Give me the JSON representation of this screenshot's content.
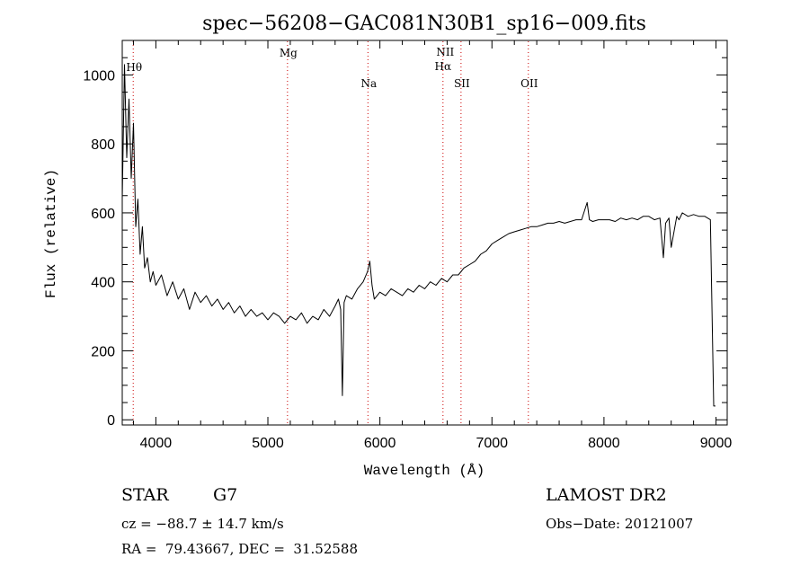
{
  "chart_data": {
    "type": "line",
    "title": "spec−56208−GAC081N30B1_sp16−009.fits",
    "xlabel": "Wavelength (Å)",
    "ylabel": "Flux (relative)",
    "xlim": [
      3700,
      9100
    ],
    "ylim": [
      -15,
      1100
    ],
    "xticks": [
      4000,
      5000,
      6000,
      7000,
      8000,
      9000
    ],
    "yticks": [
      0,
      200,
      400,
      600,
      800,
      1000
    ],
    "x_tick_labels": [
      "4000",
      "5000",
      "6000",
      "7000",
      "8000",
      "9000"
    ],
    "y_tick_labels": [
      "0",
      "200",
      "400",
      "600",
      "800",
      "1000"
    ],
    "grid": false,
    "line_color": "#000000",
    "marker_color": "#cc0000",
    "spectral_lines": [
      {
        "label": "Hθ",
        "wavelength": 3798
      },
      {
        "label": "Mg",
        "wavelength": 5175
      },
      {
        "label": "Na",
        "wavelength": 5893
      },
      {
        "label": "NII",
        "wavelength": 6583
      },
      {
        "label": "Hα",
        "wavelength": 6563
      },
      {
        "label": "SII",
        "wavelength": 6724
      },
      {
        "label": "OII",
        "wavelength": 7325
      }
    ],
    "x": [
      3700,
      3720,
      3740,
      3760,
      3780,
      3800,
      3820,
      3840,
      3860,
      3880,
      3900,
      3925,
      3950,
      3975,
      4000,
      4050,
      4100,
      4150,
      4200,
      4250,
      4300,
      4350,
      4400,
      4450,
      4500,
      4550,
      4600,
      4650,
      4700,
      4750,
      4800,
      4850,
      4900,
      4950,
      5000,
      5050,
      5100,
      5150,
      5200,
      5250,
      5300,
      5350,
      5400,
      5450,
      5500,
      5550,
      5600,
      5630,
      5650,
      5665,
      5680,
      5700,
      5750,
      5800,
      5850,
      5890,
      5910,
      5930,
      5950,
      6000,
      6050,
      6100,
      6150,
      6200,
      6250,
      6300,
      6350,
      6400,
      6450,
      6500,
      6550,
      6600,
      6650,
      6700,
      6750,
      6800,
      6850,
      6900,
      6950,
      7000,
      7050,
      7100,
      7150,
      7200,
      7250,
      7300,
      7350,
      7400,
      7450,
      7500,
      7550,
      7600,
      7650,
      7700,
      7750,
      7800,
      7850,
      7870,
      7900,
      7950,
      8000,
      8050,
      8100,
      8150,
      8200,
      8250,
      8300,
      8350,
      8400,
      8450,
      8500,
      8530,
      8550,
      8580,
      8600,
      8650,
      8670,
      8700,
      8750,
      8800,
      8850,
      8900,
      8950,
      8980,
      8990,
      8995
    ],
    "y": [
      640,
      1030,
      760,
      930,
      700,
      860,
      560,
      640,
      480,
      560,
      440,
      470,
      400,
      430,
      390,
      420,
      360,
      400,
      350,
      380,
      320,
      370,
      340,
      360,
      330,
      350,
      320,
      340,
      310,
      330,
      300,
      320,
      300,
      310,
      290,
      310,
      300,
      280,
      300,
      290,
      310,
      280,
      300,
      290,
      320,
      300,
      330,
      350,
      320,
      70,
      340,
      360,
      350,
      380,
      400,
      430,
      460,
      390,
      350,
      370,
      360,
      380,
      370,
      360,
      380,
      370,
      390,
      380,
      400,
      390,
      410,
      400,
      420,
      420,
      440,
      450,
      460,
      480,
      490,
      510,
      520,
      530,
      540,
      545,
      550,
      555,
      560,
      560,
      565,
      570,
      570,
      575,
      570,
      575,
      580,
      580,
      630,
      580,
      575,
      580,
      580,
      580,
      575,
      585,
      580,
      585,
      580,
      590,
      590,
      580,
      585,
      470,
      570,
      585,
      500,
      590,
      580,
      600,
      590,
      595,
      590,
      590,
      580,
      40,
      40,
      40
    ]
  },
  "info": {
    "object_type": "STAR",
    "subclass": "G7",
    "survey": "LAMOST DR2",
    "cz": "cz = −88.7 ± 14.7 km/s",
    "obs_date": "Obs−Date: 20121007",
    "coords": "RA =  79.43667, DEC =  31.52588"
  }
}
